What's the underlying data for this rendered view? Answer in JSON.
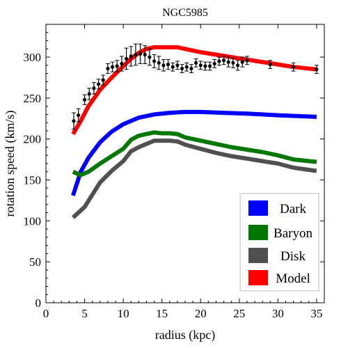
{
  "chart_data": {
    "type": "line",
    "title": "NGC5985",
    "xlabel": "radius (kpc)",
    "ylabel": "rotation speed (km/s)",
    "xlim": [
      0,
      36
    ],
    "ylim": [
      0,
      340
    ],
    "xticks": [
      0,
      5,
      10,
      15,
      20,
      25,
      30,
      35
    ],
    "yticks": [
      0,
      50,
      100,
      150,
      200,
      250,
      300
    ],
    "grid": false,
    "legend_position": "bottom-right",
    "series": [
      {
        "name": "Dark",
        "color": "#0000ff",
        "x": [
          3.5,
          4.5,
          5.5,
          7,
          8.5,
          10,
          12,
          14,
          16,
          18,
          20,
          23,
          26,
          30,
          35
        ],
        "y": [
          131,
          160,
          177,
          196,
          209,
          218,
          226,
          230,
          232,
          233,
          233,
          232,
          231,
          229,
          227
        ]
      },
      {
        "name": "Baryon",
        "color": "#007700",
        "x": [
          3.5,
          4.5,
          5.5,
          7,
          8.5,
          10,
          11,
          12,
          13,
          14,
          15,
          16,
          17,
          18,
          20,
          22,
          24,
          26,
          28,
          30,
          32,
          35
        ],
        "y": [
          160,
          156,
          160,
          170,
          179,
          188,
          199,
          204,
          206,
          208,
          207,
          207,
          206,
          202,
          198,
          194,
          190,
          187,
          184,
          180,
          175,
          172
        ]
      },
      {
        "name": "Disk",
        "color": "#505050",
        "x": [
          3.5,
          5,
          6,
          7,
          8.5,
          10,
          11,
          12,
          13,
          14,
          15,
          16,
          17,
          18,
          20,
          22,
          24,
          26,
          28,
          30,
          32,
          35
        ],
        "y": [
          104,
          117,
          132,
          147,
          161,
          173,
          185,
          190,
          194,
          198,
          198,
          198,
          197,
          193,
          188,
          183,
          179,
          176,
          173,
          170,
          165,
          161
        ]
      },
      {
        "name": "Model",
        "color": "#ff0000",
        "x": [
          3.5,
          4.5,
          5.5,
          7,
          8.5,
          10,
          11,
          12,
          13,
          14,
          15,
          16,
          17,
          18,
          20,
          22,
          24,
          26,
          28,
          30,
          32,
          35
        ],
        "y": [
          206,
          222,
          240,
          260,
          275,
          289,
          298,
          305,
          310,
          312,
          312,
          312,
          312,
          310,
          306,
          303,
          300,
          297,
          294,
          291,
          288,
          285
        ]
      }
    ],
    "observed": {
      "x": [
        3.6,
        4.2,
        5.0,
        5.6,
        6.2,
        6.8,
        7.4,
        8.0,
        8.6,
        9.2,
        9.8,
        10.4,
        11.0,
        11.6,
        12.2,
        12.8,
        13.4,
        14.0,
        14.6,
        15.2,
        15.8,
        16.4,
        17.0,
        17.6,
        18.2,
        18.8,
        19.4,
        20.0,
        20.6,
        21.2,
        21.8,
        22.4,
        23.0,
        23.6,
        24.2,
        24.8,
        25.4,
        26.0,
        29.0,
        32.0,
        35.0
      ],
      "y": [
        222,
        229,
        248,
        255,
        262,
        267,
        272,
        286,
        288,
        289,
        292,
        298,
        301,
        303,
        304,
        303,
        300,
        295,
        293,
        290,
        291,
        288,
        290,
        286,
        288,
        286,
        293,
        290,
        289,
        289,
        292,
        295,
        296,
        294,
        293,
        290,
        294,
        296,
        291,
        288,
        285
      ],
      "err": [
        10,
        8,
        6,
        7,
        7,
        6,
        6,
        6,
        6,
        7,
        9,
        13,
        12,
        13,
        12,
        11,
        10,
        8,
        8,
        7,
        6,
        5,
        5,
        5,
        5,
        5,
        5,
        5,
        5,
        5,
        5,
        5,
        5,
        6,
        6,
        6,
        6,
        5,
        5,
        5,
        5
      ]
    }
  }
}
